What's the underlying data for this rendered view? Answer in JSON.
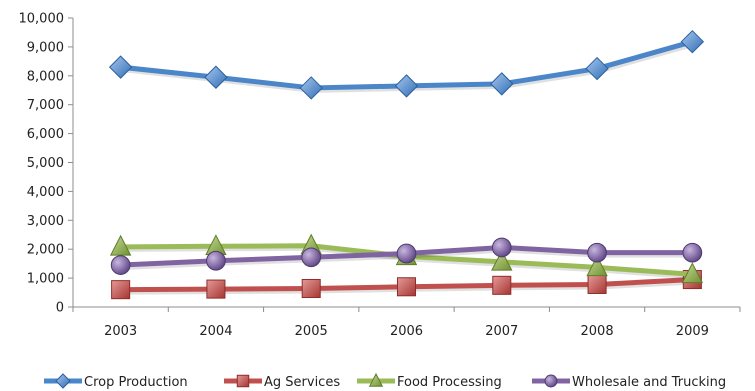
{
  "chart_data": {
    "type": "line",
    "categories": [
      "2003",
      "2004",
      "2005",
      "2006",
      "2007",
      "2008",
      "2009"
    ],
    "ylim": [
      0,
      10000
    ],
    "yticks": [
      0,
      1000,
      2000,
      3000,
      4000,
      5000,
      6000,
      7000,
      8000,
      9000,
      10000
    ],
    "ytick_labels": [
      "0",
      "1,000",
      "2,000",
      "3,000",
      "4,000",
      "5,000",
      "6,000",
      "7,000",
      "8,000",
      "9,000",
      "10,000"
    ],
    "grid": false,
    "legend_position": "bottom",
    "series": [
      {
        "name": "Crop Production",
        "color": "#4a86c8",
        "marker": "diamond",
        "values": [
          8300,
          7950,
          7580,
          7650,
          7720,
          8250,
          9180
        ]
      },
      {
        "name": "Ag Services",
        "color": "#c0504d",
        "marker": "square",
        "values": [
          600,
          620,
          640,
          700,
          750,
          780,
          950
        ]
      },
      {
        "name": "Food Processing",
        "color": "#9bbb59",
        "marker": "triangle",
        "values": [
          2080,
          2100,
          2120,
          1750,
          1560,
          1370,
          1130
        ]
      },
      {
        "name": "Wholesale and Trucking",
        "color": "#8064a2",
        "marker": "circle",
        "values": [
          1450,
          1600,
          1720,
          1850,
          2060,
          1880,
          1880
        ]
      }
    ]
  }
}
